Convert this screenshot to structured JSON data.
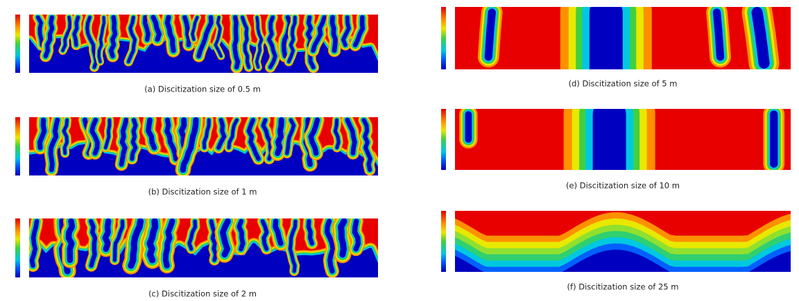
{
  "panels": [
    {
      "caption": "(a) Discitization size of 0.5 m"
    },
    {
      "caption": "(b) Discitization size of 1 m"
    },
    {
      "caption": "(c) Discitization size of 2 m"
    },
    {
      "caption": "(d) Discitization size of 5 m"
    },
    {
      "caption": "(e) Discitization size of 10 m"
    },
    {
      "caption": "(f) Discitization size of 25 m"
    }
  ]
}
